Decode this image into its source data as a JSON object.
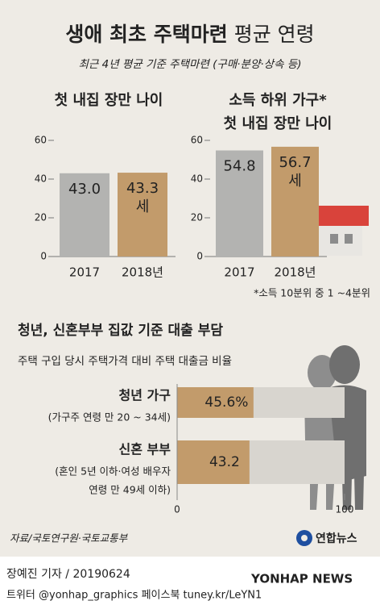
{
  "title_main": "생애 최초 주택마련",
  "title_rest": "평균 연령",
  "subtitle": "최근 4년 평균 기준 주택마련 (구매·분양·상속 등)",
  "chart_data": [
    {
      "type": "bar",
      "title": [
        "첫 내집 장만 나이"
      ],
      "categories": [
        "2017",
        "2018년"
      ],
      "values": [
        43.0,
        43.3
      ],
      "value_labels": [
        "43.0",
        "43.3"
      ],
      "unit": "세",
      "colors": [
        "#b3b3b1",
        "#c29b6b"
      ],
      "ylim": [
        0,
        60
      ],
      "yticks": [
        0,
        20,
        40,
        60
      ]
    },
    {
      "type": "bar",
      "title": [
        "소득 하위 가구*",
        "첫 내집 장만 나이"
      ],
      "categories": [
        "2017",
        "2018년"
      ],
      "values": [
        54.8,
        56.7
      ],
      "value_labels": [
        "54.8",
        "56.7"
      ],
      "unit": "세",
      "colors": [
        "#b3b3b1",
        "#c29b6b"
      ],
      "ylim": [
        0,
        60
      ],
      "yticks": [
        0,
        20,
        40,
        60
      ],
      "note": "*소득 10분위 중 1 ~4분위"
    },
    {
      "type": "hbar",
      "title": "청년, 신혼부부 집값 기준 대출 부담",
      "subtitle": "주택 구입 당시 주택가격 대비 주택 대출금 비율",
      "categories": [
        "청년 가구",
        "신혼 부부"
      ],
      "category_notes": [
        [
          "(가구주 연령 만 20 ~ 34세)"
        ],
        [
          "(혼인 5년 이하·여성 배우자",
          "연령 만 49세 이하)"
        ]
      ],
      "values": [
        45.6,
        43.2
      ],
      "value_labels": [
        "45.6%",
        "43.2"
      ],
      "color": "#c29b6b",
      "xlim": [
        0,
        100
      ],
      "xticks": [
        0,
        100
      ]
    }
  ],
  "source": "자료/국토연구원·국토교통부",
  "logo": "연합뉴스",
  "byline": "장예진 기자 / 20190624",
  "social": "트위터 @yonhap_graphics  페이스북 tuney.kr/LeYN1",
  "watermark": "YONHAP NEWS"
}
